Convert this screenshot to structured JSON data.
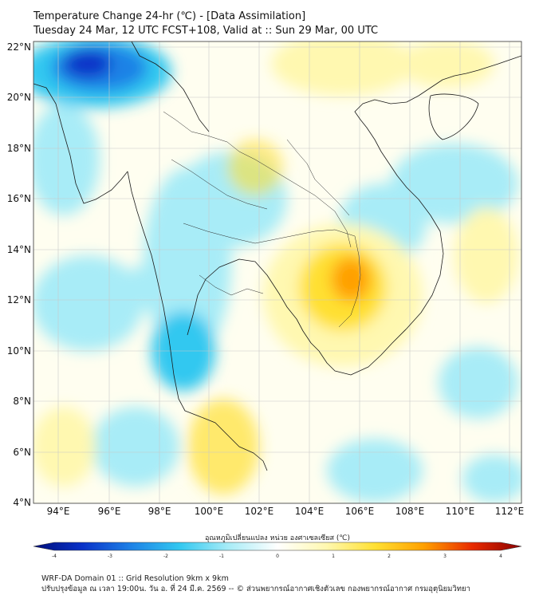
{
  "header": {
    "title": "Temperature Change 24-hr (℃) - [Data Assimilation]",
    "subtitle": "Tuesday 24 Mar, 12 UTC FCST+108, Valid at :: Sun 29 Mar, 00 UTC"
  },
  "map": {
    "lon_range": [
      93,
      112.5
    ],
    "lat_range": [
      4,
      22.2
    ],
    "lon_ticks": [
      "94°E",
      "96°E",
      "98°E",
      "100°E",
      "102°E",
      "104°E",
      "106°E",
      "108°E",
      "110°E",
      "112°E"
    ],
    "lat_ticks": [
      "22°N",
      "20°N",
      "18°N",
      "16°N",
      "14°N",
      "12°N",
      "10°N",
      "8°N",
      "6°N",
      "4°N"
    ],
    "field": "24-hr temperature change",
    "notable_features": [
      {
        "lon": 95.3,
        "lat": 21.3,
        "value": -3.2
      },
      {
        "lon": 106.0,
        "lat": 12.8,
        "value": 2.4
      }
    ]
  },
  "colorbar": {
    "label": "อุณหภูมิเปลี่ยนแปลง หน่วย องศาเซลเซียส (℃)",
    "min": -4,
    "max": 4,
    "tick_labels": [
      "-4",
      "-3",
      "-2",
      "-1",
      "0",
      "1",
      "2",
      "3",
      "4"
    ],
    "colors": [
      "#000e7a",
      "#0a32c8",
      "#1e82e6",
      "#33c8f0",
      "#a8ecf7",
      "#ffffff",
      "#fff8b0",
      "#ffe033",
      "#ffa000",
      "#e82a00",
      "#8a0000"
    ]
  },
  "footer": {
    "line1": "WRF-DA Domain 01 :: Grid Resolution 9km x 9km",
    "line2": "ปรับปรุงข้อมูล ณ เวลา 19:00น. วัน อ. ที่ 24 มี.ค. 2569 -- © ส่วนพยากรณ์อากาศเชิงตัวเลข กองพยากรณ์อากาศ กรมอุตุนิยมวิทยา"
  }
}
